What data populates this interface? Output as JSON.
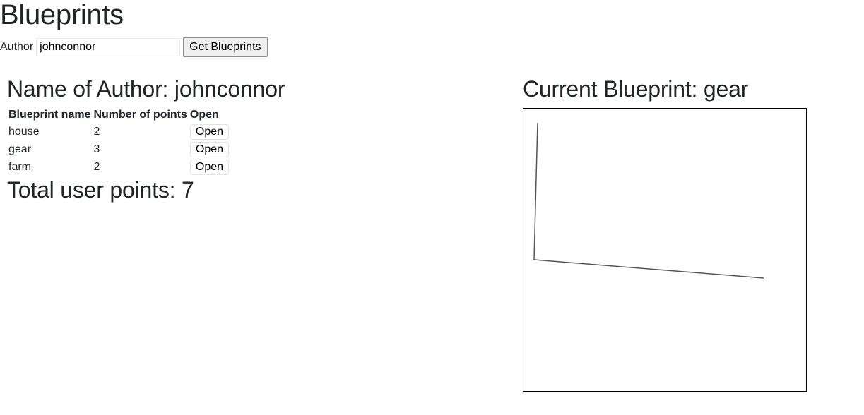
{
  "header": {
    "title": "Blueprints"
  },
  "search": {
    "author_label": "Author",
    "author_value": "johnconnor",
    "button_label": "Get Blueprints"
  },
  "author_panel": {
    "heading": "Name of Author: johnconnor",
    "table": {
      "headers": [
        "Blueprint name",
        "Number of points",
        "Open"
      ],
      "rows": [
        {
          "name": "house",
          "points": "2",
          "action": "Open"
        },
        {
          "name": "gear",
          "points": "3",
          "action": "Open"
        },
        {
          "name": "farm",
          "points": "2",
          "action": "Open"
        }
      ]
    },
    "total": "Total user points: 7"
  },
  "canvas_panel": {
    "heading": "Current Blueprint: gear",
    "stroke_color": "#555555",
    "border_color": "#000000"
  }
}
